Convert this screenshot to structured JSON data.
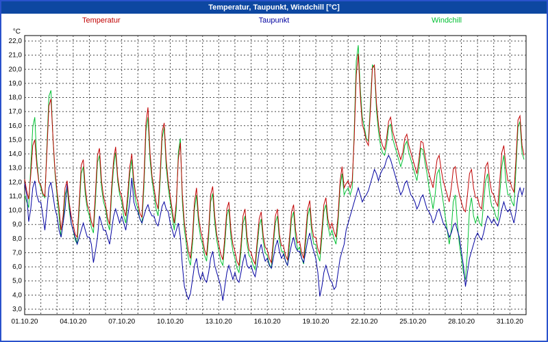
{
  "window": {
    "title": "Temperatur, Taupunkt, Windchill [°C]"
  },
  "colors": {
    "titlebar": "#0d47a1",
    "border": "#2a52cc",
    "grid": "#444444",
    "plot_border": "#000000",
    "axis_text": "#000000"
  },
  "legend": [
    {
      "label": "Temperatur",
      "color": "#c00000"
    },
    {
      "label": "Taupunkt",
      "color": "#0000a0"
    },
    {
      "label": "Windchill",
      "color": "#00c032"
    }
  ],
  "chart_data": {
    "type": "line",
    "title": "Temperatur, Taupunkt, Windchill [°C]",
    "xlabel": "",
    "ylabel": "°C",
    "ylim": [
      3.0,
      22.0
    ],
    "y_tick_step": 1.0,
    "y_tick_labels": [
      "22,0",
      "21,0",
      "20,0",
      "19,0",
      "18,0",
      "17,0",
      "16,0",
      "15,0",
      "14,0",
      "13,0",
      "12,0",
      "11,0",
      "10,0",
      "9,0",
      "8,0",
      "7,0",
      "6,0",
      "5,0",
      "4,0",
      "3,0"
    ],
    "x_tick_labels": [
      "01.10.20",
      "04.10.20",
      "07.10.20",
      "10.10.20",
      "13.10.20",
      "16.10.20",
      "19.10.20",
      "22.10.20",
      "25.10.20",
      "28.10.20",
      "31.10.20"
    ],
    "x_days": 31,
    "points_per_day": 8,
    "grid": "dashed",
    "legend_position": "top",
    "series": [
      {
        "name": "Temperatur",
        "color": "#c00000",
        "values": [
          12.2,
          11.4,
          10.8,
          12.5,
          14.6,
          15.0,
          13.2,
          12.0,
          11.8,
          11.2,
          11.0,
          14.2,
          17.4,
          17.9,
          15.2,
          12.8,
          11.4,
          10.2,
          8.6,
          9.6,
          11.6,
          12.1,
          10.6,
          9.6,
          9.0,
          8.3,
          8.1,
          10.6,
          13.2,
          13.6,
          11.6,
          10.4,
          10.0,
          9.2,
          8.8,
          11.2,
          13.9,
          14.4,
          12.1,
          11.0,
          10.4,
          9.5,
          9.0,
          11.6,
          13.6,
          14.5,
          12.4,
          11.4,
          11.0,
          10.1,
          9.6,
          11.2,
          13.1,
          14.0,
          12.1,
          11.1,
          10.6,
          9.8,
          9.5,
          12.2,
          16.2,
          17.3,
          14.1,
          12.4,
          11.6,
          10.6,
          10.1,
          12.6,
          15.6,
          16.2,
          13.6,
          12.0,
          11.0,
          10.0,
          9.1,
          10.6,
          13.6,
          14.8,
          11.1,
          9.1,
          8.1,
          7.1,
          6.6,
          8.1,
          10.6,
          11.6,
          9.6,
          8.6,
          8.0,
          7.2,
          6.8,
          8.6,
          11.1,
          11.7,
          9.6,
          8.3,
          7.6,
          6.9,
          6.5,
          8.1,
          10.1,
          10.6,
          8.6,
          7.6,
          7.1,
          6.4,
          6.1,
          7.6,
          9.6,
          10.1,
          8.1,
          7.2,
          7.0,
          6.5,
          6.2,
          7.8,
          9.4,
          9.9,
          8.2,
          7.4,
          7.2,
          6.6,
          6.3,
          7.9,
          9.6,
          10.1,
          8.3,
          7.5,
          7.5,
          6.8,
          6.5,
          8.1,
          9.9,
          10.4,
          8.6,
          7.7,
          7.8,
          7.0,
          6.6,
          8.3,
          10.1,
          10.7,
          8.9,
          8.1,
          8.1,
          7.3,
          6.9,
          8.6,
          10.4,
          10.9,
          9.4,
          8.7,
          9.1,
          8.5,
          8.1,
          9.6,
          12.1,
          13.1,
          11.6,
          11.9,
          12.1,
          11.6,
          12.1,
          15.1,
          19.6,
          21.1,
          18.1,
          16.1,
          15.6,
          14.9,
          14.6,
          17.1,
          20.1,
          20.3,
          17.6,
          16.1,
          15.1,
          14.6,
          14.3,
          15.1,
          16.3,
          16.6,
          15.6,
          15.1,
          14.6,
          14.1,
          13.6,
          14.1,
          15.1,
          15.4,
          14.6,
          14.1,
          13.6,
          13.1,
          12.6,
          13.6,
          14.9,
          14.8,
          13.9,
          13.1,
          12.6,
          12.1,
          11.6,
          12.6,
          13.6,
          13.9,
          12.9,
          12.1,
          11.6,
          11.1,
          10.6,
          11.6,
          12.9,
          13.1,
          11.9,
          11.1,
          10.6,
          10.1,
          9.9,
          11.1,
          12.6,
          12.9,
          11.6,
          10.9,
          10.9,
          10.3,
          10.1,
          11.6,
          13.1,
          13.4,
          12.1,
          11.3,
          11.1,
          10.6,
          10.3,
          12.1,
          14.1,
          14.6,
          13.1,
          12.1,
          12.1,
          11.6,
          11.3,
          13.6,
          16.4,
          16.7,
          14.6,
          13.9
        ]
      },
      {
        "name": "Taupunkt",
        "color": "#0000a0",
        "values": [
          11.9,
          11.1,
          9.2,
          10.1,
          11.6,
          12.1,
          11.1,
          10.6,
          10.6,
          9.6,
          8.6,
          10.1,
          11.6,
          12.0,
          11.1,
          10.1,
          9.6,
          8.6,
          8.1,
          9.1,
          10.1,
          11.9,
          10.6,
          9.1,
          8.6,
          8.1,
          7.6,
          8.1,
          8.6,
          9.1,
          8.6,
          8.1,
          8.1,
          7.6,
          6.3,
          7.1,
          8.1,
          9.6,
          9.1,
          8.6,
          8.6,
          8.1,
          7.6,
          8.6,
          9.6,
          10.1,
          9.6,
          9.1,
          9.6,
          9.1,
          8.6,
          9.6,
          10.6,
          12.3,
          10.6,
          10.1,
          9.9,
          9.4,
          9.1,
          9.6,
          10.1,
          10.4,
          9.9,
          9.6,
          9.6,
          9.1,
          8.9,
          9.6,
          10.3,
          10.6,
          10.1,
          9.9,
          9.1,
          8.6,
          8.1,
          8.6,
          9.1,
          8.1,
          6.1,
          4.6,
          4.1,
          3.7,
          4.1,
          5.1,
          6.1,
          6.6,
          5.6,
          5.1,
          5.6,
          5.1,
          4.9,
          5.6,
          6.6,
          7.1,
          6.1,
          5.6,
          5.1,
          4.6,
          3.6,
          4.6,
          5.6,
          6.1,
          5.6,
          5.1,
          5.6,
          5.1,
          4.9,
          5.6,
          6.4,
          6.9,
          6.1,
          5.9,
          6.1,
          5.6,
          5.3,
          6.1,
          7.1,
          7.6,
          6.9,
          6.4,
          6.6,
          6.1,
          5.9,
          6.6,
          7.4,
          7.9,
          7.1,
          6.6,
          6.9,
          6.4,
          6.1,
          6.9,
          7.6,
          8.1,
          7.4,
          7.1,
          7.1,
          6.6,
          6.3,
          7.1,
          7.9,
          8.4,
          7.6,
          7.1,
          6.6,
          5.6,
          3.9,
          4.6,
          5.6,
          6.1,
          5.6,
          5.1,
          4.9,
          4.4,
          4.6,
          5.6,
          6.6,
          7.1,
          7.6,
          8.6,
          9.1,
          9.6,
          10.1,
          10.6,
          11.1,
          11.6,
          11.1,
          10.6,
          10.9,
          11.1,
          11.4,
          11.9,
          12.4,
          12.9,
          12.6,
          12.1,
          12.6,
          12.9,
          13.1,
          13.6,
          13.9,
          13.6,
          13.1,
          12.6,
          12.1,
          11.6,
          11.1,
          11.4,
          11.9,
          12.1,
          11.6,
          11.1,
          10.9,
          10.6,
          10.1,
          10.4,
          10.9,
          11.1,
          10.6,
          10.1,
          9.9,
          9.6,
          9.1,
          9.4,
          9.9,
          10.1,
          9.6,
          9.1,
          8.9,
          8.6,
          8.1,
          8.4,
          8.9,
          9.1,
          8.6,
          8.1,
          7.1,
          6.1,
          4.6,
          5.6,
          6.6,
          7.1,
          7.6,
          8.1,
          8.4,
          8.1,
          7.9,
          8.4,
          9.1,
          9.6,
          9.4,
          9.1,
          9.4,
          9.1,
          8.9,
          9.4,
          10.1,
          10.6,
          10.1,
          9.9,
          10.1,
          9.6,
          9.1,
          9.9,
          11.1,
          11.6,
          11.1,
          11.6
        ]
      },
      {
        "name": "Windchill",
        "color": "#00c032",
        "values": [
          11.1,
          10.6,
          10.2,
          13.1,
          15.9,
          16.6,
          13.6,
          12.1,
          11.6,
          11.1,
          10.9,
          14.6,
          18.1,
          18.5,
          15.1,
          12.6,
          11.1,
          9.6,
          8.1,
          9.1,
          11.1,
          11.6,
          10.1,
          9.1,
          8.6,
          7.9,
          7.6,
          10.1,
          12.6,
          13.1,
          11.1,
          10.1,
          9.6,
          8.8,
          8.4,
          10.6,
          13.4,
          13.9,
          11.6,
          10.6,
          10.1,
          9.1,
          8.6,
          11.1,
          13.1,
          14.1,
          12.1,
          11.1,
          10.6,
          9.6,
          9.1,
          10.6,
          12.6,
          13.6,
          11.6,
          10.6,
          10.1,
          9.4,
          9.1,
          11.6,
          15.6,
          16.6,
          13.6,
          12.1,
          11.1,
          10.1,
          9.6,
          12.1,
          15.1,
          15.9,
          13.1,
          11.6,
          10.6,
          9.6,
          8.6,
          10.1,
          14.1,
          15.1,
          10.6,
          8.6,
          7.6,
          6.6,
          6.1,
          7.6,
          10.1,
          11.1,
          9.1,
          8.1,
          7.6,
          6.8,
          6.4,
          8.1,
          10.6,
          11.2,
          9.1,
          7.9,
          7.1,
          6.4,
          6.1,
          7.6,
          9.6,
          10.1,
          8.1,
          7.1,
          6.6,
          5.9,
          5.6,
          7.1,
          9.1,
          9.6,
          7.6,
          6.8,
          6.6,
          6.1,
          5.8,
          7.4,
          8.9,
          9.4,
          7.8,
          7.0,
          6.8,
          6.2,
          5.9,
          7.5,
          9.1,
          9.6,
          7.9,
          7.1,
          7.1,
          6.4,
          6.1,
          7.6,
          9.4,
          9.9,
          8.1,
          7.2,
          7.4,
          6.6,
          6.2,
          7.8,
          9.6,
          10.2,
          8.4,
          7.6,
          7.6,
          6.8,
          6.4,
          8.1,
          9.9,
          10.4,
          8.9,
          8.2,
          8.6,
          8.0,
          7.6,
          9.1,
          11.6,
          12.6,
          11.1,
          11.4,
          11.6,
          11.1,
          11.6,
          15.6,
          20.6,
          21.7,
          18.6,
          16.6,
          15.9,
          15.1,
          14.9,
          17.6,
          20.3,
          20.1,
          17.1,
          15.6,
          14.6,
          14.1,
          13.9,
          14.6,
          15.9,
          16.1,
          15.1,
          14.6,
          14.1,
          13.6,
          13.1,
          13.6,
          14.6,
          14.9,
          14.1,
          13.6,
          13.1,
          12.6,
          12.1,
          13.1,
          14.4,
          14.3,
          13.4,
          12.6,
          11.6,
          10.9,
          10.1,
          11.1,
          12.6,
          12.9,
          11.6,
          10.6,
          9.6,
          8.6,
          7.6,
          8.6,
          10.6,
          11.1,
          9.1,
          7.6,
          6.6,
          5.6,
          5.1,
          7.1,
          10.1,
          10.9,
          9.6,
          9.1,
          9.6,
          9.1,
          8.9,
          10.6,
          12.1,
          12.6,
          11.1,
          10.3,
          10.1,
          9.6,
          9.3,
          11.1,
          13.1,
          13.9,
          12.1,
          11.1,
          11.1,
          10.6,
          10.3,
          12.9,
          15.9,
          16.3,
          14.1,
          13.6
        ]
      }
    ]
  }
}
